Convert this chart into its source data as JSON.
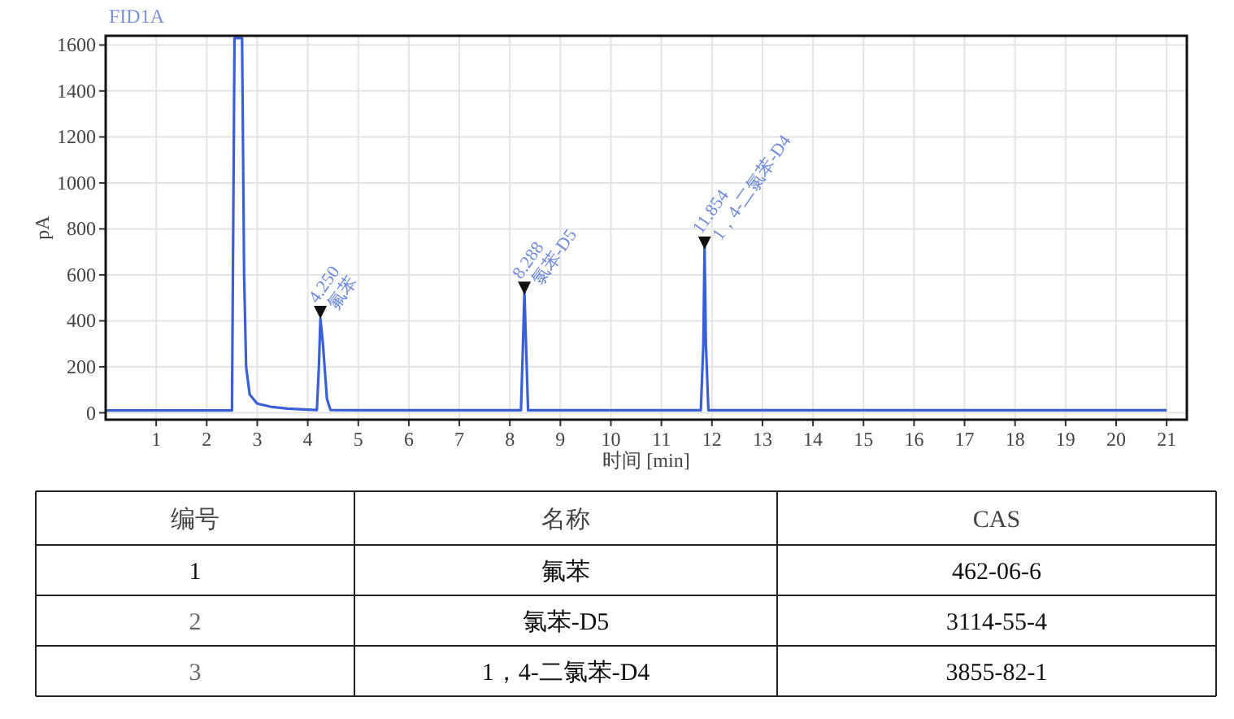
{
  "chart_data": [
    {
      "type": "line",
      "title": "FID1A",
      "xlabel": "时间 [min]",
      "ylabel": "pA",
      "xlim": [
        0,
        21.4
      ],
      "ylim": [
        -30,
        1640
      ],
      "xticks": [
        1,
        2,
        3,
        4,
        5,
        6,
        7,
        8,
        9,
        10,
        11,
        12,
        13,
        14,
        15,
        16,
        17,
        18,
        19,
        20,
        21
      ],
      "yticks": [
        0,
        200,
        400,
        600,
        800,
        1000,
        1200,
        1400,
        1600
      ],
      "grid": true,
      "marker": "none",
      "line_style": "solid",
      "series": [
        {
          "color": "#3a60d8",
          "x": [
            0,
            1,
            2,
            2.5,
            2.52,
            2.55,
            2.7,
            2.74,
            2.78,
            2.85,
            3,
            3.3,
            3.6,
            4,
            4.18,
            4.22,
            4.25,
            4.3,
            4.38,
            4.45,
            5,
            6,
            7,
            8,
            8.22,
            8.26,
            8.288,
            8.32,
            8.36,
            9,
            10,
            11,
            11.78,
            11.83,
            11.854,
            11.88,
            11.93,
            12.5,
            14,
            16,
            18,
            20,
            21
          ],
          "values": [
            10,
            10,
            10,
            10,
            660,
            1630,
            1630,
            600,
            200,
            80,
            40,
            25,
            18,
            14,
            12,
            200,
            410,
            300,
            60,
            12,
            11,
            11,
            11,
            11,
            11,
            300,
            525,
            300,
            11,
            11,
            11,
            11,
            11,
            300,
            720,
            300,
            11,
            11,
            11,
            11,
            11,
            11,
            11
          ]
        }
      ],
      "annotations": [
        {
          "text": "4.250",
          "x": 4.25,
          "y": 430
        },
        {
          "text": "氟苯",
          "x": 4.25,
          "y": 430
        },
        {
          "text": "8.288",
          "x": 8.288,
          "y": 535
        },
        {
          "text": "氯苯-D5",
          "x": 8.288,
          "y": 535
        },
        {
          "text": "11.854",
          "x": 11.854,
          "y": 732
        },
        {
          "text": "1，4-二氯苯-D4",
          "x": 11.854,
          "y": 732
        }
      ]
    },
    {
      "type": "other",
      "categories": [
        "编号",
        "名称",
        "CAS"
      ],
      "annotations": [
        "1",
        "氟苯",
        "462-06-6",
        "2",
        "氯苯-D5",
        "3114-55-4",
        "3",
        "1，4-二氯苯-D4",
        "3855-82-1"
      ]
    }
  ]
}
